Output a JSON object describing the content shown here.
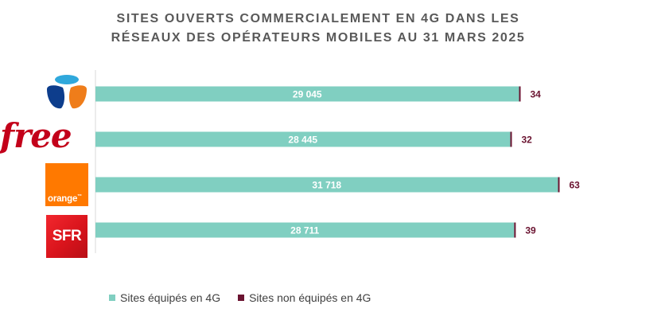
{
  "chart_data": {
    "type": "bar",
    "stacked": true,
    "orientation": "horizontal",
    "title_lines": [
      "SITES OUVERTS COMMERCIALEMENT EN 4G DANS LES",
      "RÉSEAUX DES OPÉRATEURS MOBILES AU 31 MARS 2025"
    ],
    "categories": [
      "Bouygues Telecom",
      "free",
      "orange",
      "SFR"
    ],
    "series": [
      {
        "name": "Sites équipés en 4G",
        "color": "#80cfc1",
        "values": [
          29045,
          28445,
          31718,
          28711
        ],
        "labels": [
          "29 045",
          "28 445",
          "31 718",
          "28 711"
        ]
      },
      {
        "name": "Sites non équipés en 4G",
        "color": "#6b1431",
        "values": [
          34,
          32,
          63,
          39
        ],
        "labels": [
          "34",
          "32",
          "63",
          "39"
        ]
      }
    ],
    "xlim": [
      0,
      33000
    ],
    "grid": false,
    "legend_position": "bottom-left"
  },
  "logos": {
    "bouygues": {
      "icon": "bouygues-telecom-logo"
    },
    "free": {
      "text": "free"
    },
    "orange": {
      "text": "orange",
      "mark": "™"
    },
    "sfr": {
      "text": "SFR"
    }
  }
}
